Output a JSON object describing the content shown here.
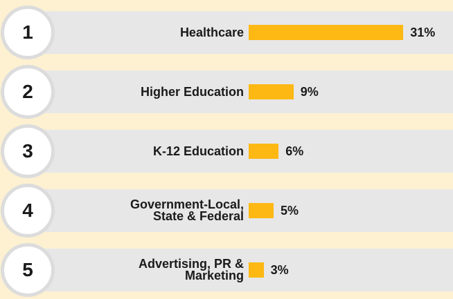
{
  "chart_data": {
    "type": "bar",
    "orientation": "horizontal",
    "ranks": [
      1,
      2,
      3,
      4,
      5
    ],
    "categories": [
      "Healthcare",
      "Higher Education",
      "K-12 Education",
      "Government-Local,\nState & Federal",
      "Advertising, PR &\nMarketing"
    ],
    "values": [
      31,
      9,
      6,
      5,
      3
    ],
    "value_labels": [
      "31%",
      "9%",
      "6%",
      "5%",
      "3%"
    ],
    "color": "#fdb813"
  }
}
